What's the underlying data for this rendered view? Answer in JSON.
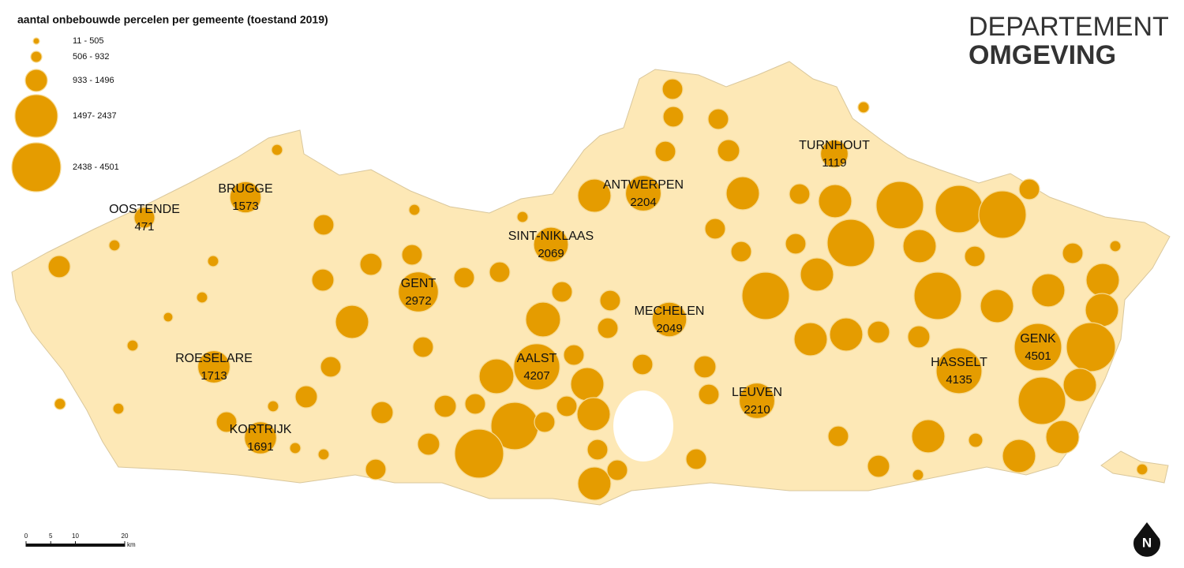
{
  "title": "aantal onbebouwde percelen per gemeente (toestand 2019)",
  "legend": {
    "classes": [
      "11 - 505",
      "506 - 932",
      "933 - 1496",
      "1497- 2437",
      "2438 - 4501"
    ]
  },
  "cities": [
    {
      "name": "OOSTENDE",
      "value": 471
    },
    {
      "name": "BRUGGE",
      "value": 1573
    },
    {
      "name": "GENT",
      "value": 2972
    },
    {
      "name": "SINT-NIKLAAS",
      "value": 2069
    },
    {
      "name": "ANTWERPEN",
      "value": 2204
    },
    {
      "name": "TURNHOUT",
      "value": 1119
    },
    {
      "name": "MECHELEN",
      "value": 2049
    },
    {
      "name": "AALST",
      "value": 4207
    },
    {
      "name": "ROESELARE",
      "value": 1713
    },
    {
      "name": "KORTRIJK",
      "value": 1691
    },
    {
      "name": "LEUVEN",
      "value": 2210
    },
    {
      "name": "HASSELT",
      "value": 4135
    },
    {
      "name": "GENK",
      "value": 4501
    }
  ],
  "logo": {
    "line1": "DEPARTEMENT",
    "line2": "OMGEVING"
  },
  "scale_bar": {
    "ticks": [
      0,
      5,
      10,
      20
    ],
    "unit": "km"
  },
  "north": "N"
}
